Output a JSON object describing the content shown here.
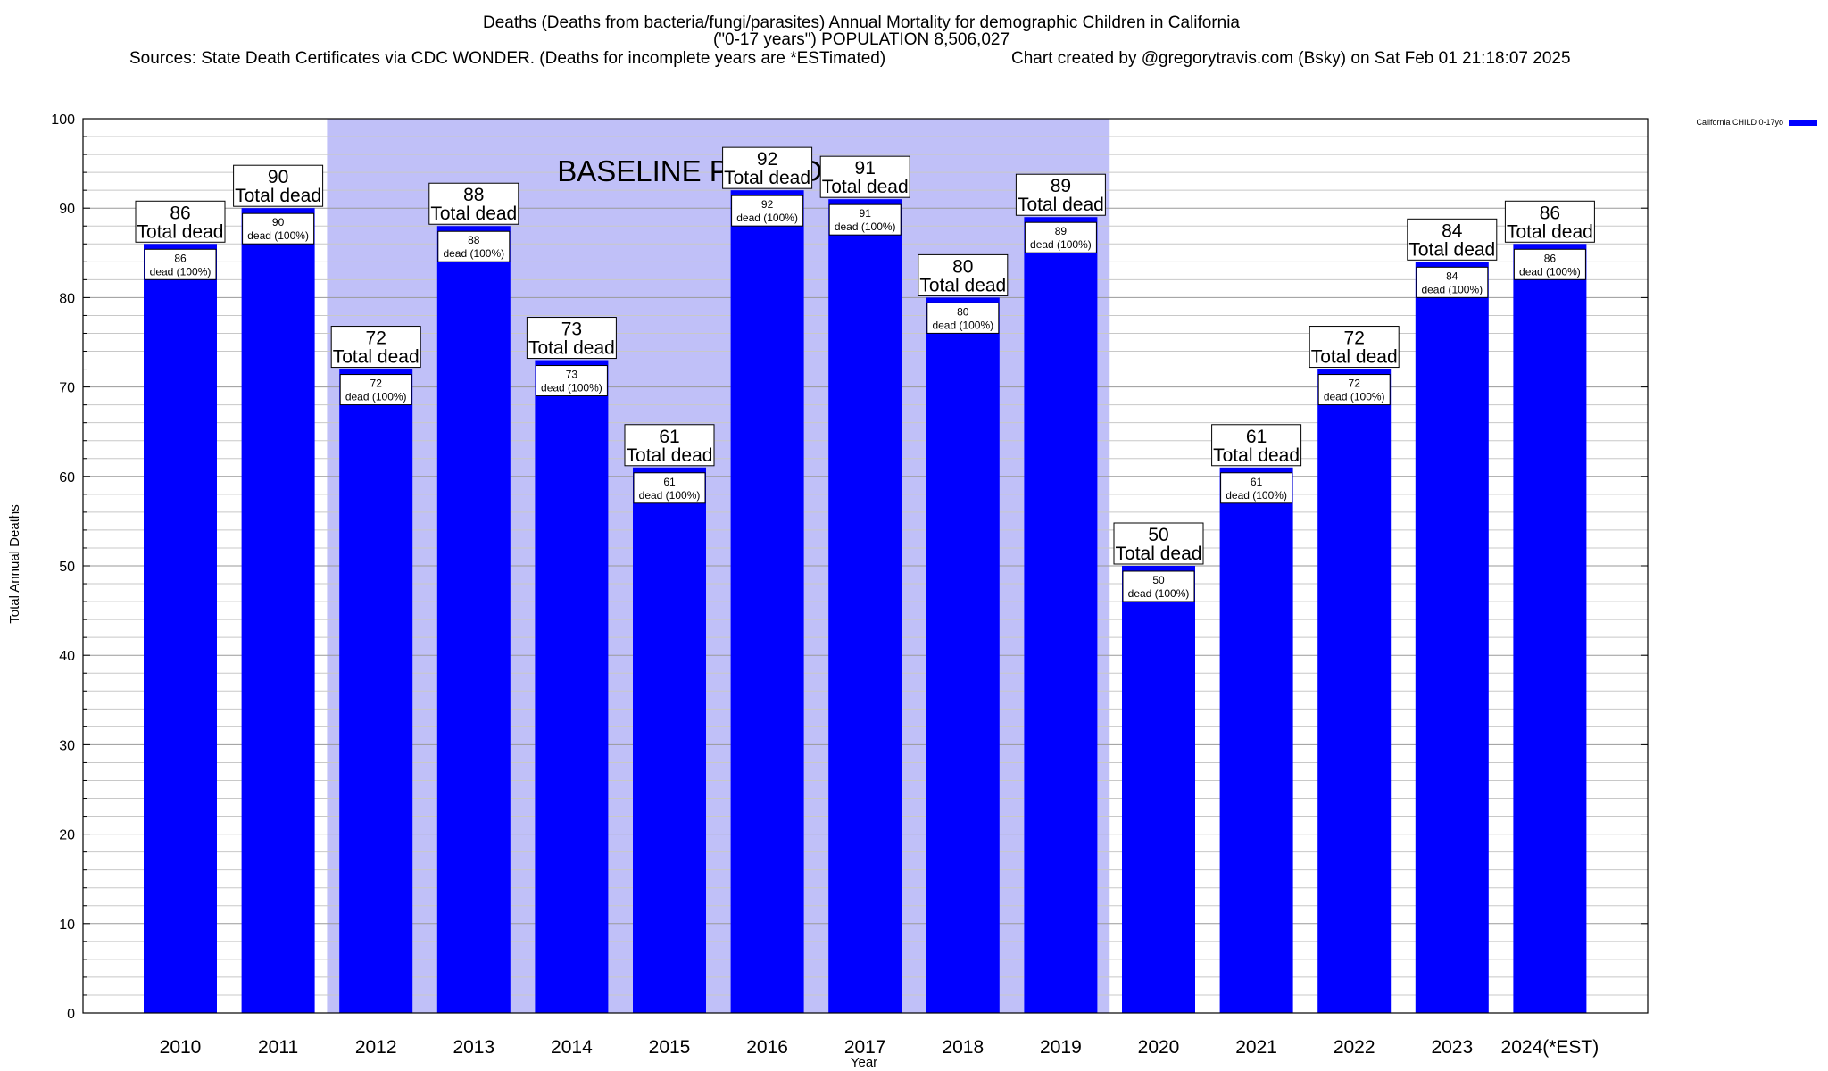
{
  "chart_data": {
    "type": "bar",
    "title_lines": [
      "Deaths (Deaths from bacteria/fungi/parasites) Annual Mortality for demographic Children in California",
      "(\"0-17 years\") POPULATION 8,506,027"
    ],
    "source_text": "Sources: State Death Certificates via CDC WONDER. (Deaths for incomplete years are *ESTimated)",
    "credit_text": "Chart created by @gregorytravis.com (Bsky) on Sat Feb 01 21:18:07 2025",
    "xlabel": "Year",
    "ylabel": "Total Annual Deaths",
    "ylim": [
      0,
      100
    ],
    "y_ticks": [
      0,
      10,
      20,
      30,
      40,
      50,
      60,
      70,
      80,
      90,
      100
    ],
    "categories": [
      "2010",
      "2011",
      "2012",
      "2013",
      "2014",
      "2015",
      "2016",
      "2017",
      "2018",
      "2019",
      "2020",
      "2021",
      "2022",
      "2023",
      "2024(*EST)"
    ],
    "series": [
      {
        "name": "California CHILD 0-17yo",
        "color": "#0000ff",
        "values": [
          86,
          90,
          72,
          88,
          73,
          61,
          92,
          91,
          80,
          89,
          50,
          61,
          72,
          84,
          86
        ]
      }
    ],
    "bar_top_caption": "Total dead",
    "bar_inner_caption": "dead (100%)",
    "baseline_band": {
      "label": "BASELINE PERIOD",
      "from_category": "2012",
      "to_category": "2019",
      "color": "#c0c0f8"
    },
    "legend": {
      "label": "California CHILD 0-17yo",
      "placement": "top-right"
    }
  }
}
